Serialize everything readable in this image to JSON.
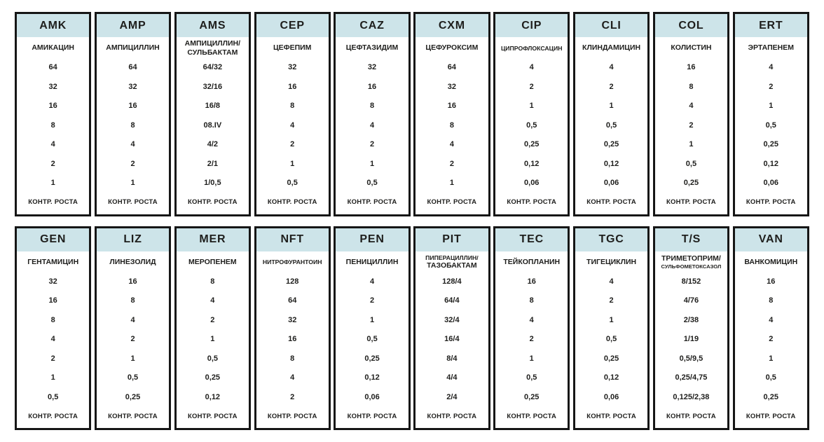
{
  "figure": {
    "control_label": "КОНТР. РОСТА",
    "colors": {
      "background": "#ffffff",
      "header_bg": "#cde4e9",
      "border": "#161616",
      "text": "#1e1e1c"
    },
    "rows": [
      [
        {
          "code": "AMK",
          "name": [
            "АМИКАЦИН"
          ],
          "dilutions": [
            "64",
            "32",
            "16",
            "8",
            "4",
            "2",
            "1"
          ]
        },
        {
          "code": "AMP",
          "name": [
            "АМПИЦИЛЛИН"
          ],
          "dilutions": [
            "64",
            "32",
            "16",
            "8",
            "4",
            "2",
            "1"
          ]
        },
        {
          "code": "AMS",
          "name": [
            "АМПИЦИЛЛИН/",
            "СУЛЬБАКТАМ"
          ],
          "dilutions": [
            "64/32",
            "32/16",
            "16/8",
            "08.IV",
            "4/2",
            "2/1",
            "1/0,5"
          ]
        },
        {
          "code": "CEP",
          "name": [
            "ЦЕФЕПИМ"
          ],
          "dilutions": [
            "32",
            "16",
            "8",
            "4",
            "2",
            "1",
            "0,5"
          ]
        },
        {
          "code": "CAZ",
          "name": [
            "ЦЕФТАЗИДИМ"
          ],
          "dilutions": [
            "32",
            "16",
            "8",
            "4",
            "2",
            "1",
            "0,5"
          ]
        },
        {
          "code": "CXM",
          "name": [
            "ЦЕФУРОКСИМ"
          ],
          "dilutions": [
            "64",
            "32",
            "16",
            "8",
            "4",
            "2",
            "1"
          ]
        },
        {
          "code": "CIP",
          "name": [
            "ЦИПРОФЛОКСАЦИН"
          ],
          "dilutions": [
            "4",
            "2",
            "1",
            "0,5",
            "0,25",
            "0,12",
            "0,06"
          ]
        },
        {
          "code": "CLI",
          "name": [
            "КЛИНДАМИЦИН"
          ],
          "dilutions": [
            "4",
            "2",
            "1",
            "0,5",
            "0,25",
            "0,12",
            "0,06"
          ]
        },
        {
          "code": "COL",
          "name": [
            "КОЛИСТИН"
          ],
          "dilutions": [
            "16",
            "8",
            "4",
            "2",
            "1",
            "0,5",
            "0,25"
          ]
        },
        {
          "code": "ERT",
          "name": [
            "ЭРТАПЕНЕМ"
          ],
          "dilutions": [
            "4",
            "2",
            "1",
            "0,5",
            "0,25",
            "0,12",
            "0,06"
          ]
        }
      ],
      [
        {
          "code": "GEN",
          "name": [
            "ГЕНТАМИЦИН"
          ],
          "dilutions": [
            "32",
            "16",
            "8",
            "4",
            "2",
            "1",
            "0,5"
          ]
        },
        {
          "code": "LIZ",
          "name": [
            "ЛИНЕЗОЛИД"
          ],
          "dilutions": [
            "16",
            "8",
            "4",
            "2",
            "1",
            "0,5",
            "0,25"
          ]
        },
        {
          "code": "MER",
          "name": [
            "МЕРОПЕНЕМ"
          ],
          "dilutions": [
            "8",
            "4",
            "2",
            "1",
            "0,5",
            "0,25",
            "0,12"
          ]
        },
        {
          "code": "NFT",
          "name": [
            "НИТРОФУРАНТОИН"
          ],
          "dilutions": [
            "128",
            "64",
            "32",
            "16",
            "8",
            "4",
            "2"
          ]
        },
        {
          "code": "PEN",
          "name": [
            "ПЕНИЦИЛЛИН"
          ],
          "dilutions": [
            "4",
            "2",
            "1",
            "0,5",
            "0,25",
            "0,12",
            "0,06"
          ]
        },
        {
          "code": "PIT",
          "name": [
            "ПИПЕРАЦИЛЛИН/",
            "ТАЗОБАКТАМ"
          ],
          "dilutions": [
            "128/4",
            "64/4",
            "32/4",
            "16/4",
            "8/4",
            "4/4",
            "2/4"
          ]
        },
        {
          "code": "TEC",
          "name": [
            "ТЕЙКОПЛАНИН"
          ],
          "dilutions": [
            "16",
            "8",
            "4",
            "2",
            "1",
            "0,5",
            "0,25"
          ]
        },
        {
          "code": "TGC",
          "name": [
            "ТИГЕЦИКЛИН"
          ],
          "dilutions": [
            "4",
            "2",
            "1",
            "0,5",
            "0,25",
            "0,12",
            "0,06"
          ]
        },
        {
          "code": "T/S",
          "name": [
            "ТРИМЕТОПРИМ/",
            "СУЛЬФОМЕТОКСАЗОЛ"
          ],
          "dilutions": [
            "8/152",
            "4/76",
            "2/38",
            "1/19",
            "0,5/9,5",
            "0,25/4,75",
            "0,125/2,38"
          ]
        },
        {
          "code": "VAN",
          "name": [
            "ВАНКОМИЦИН"
          ],
          "dilutions": [
            "16",
            "8",
            "4",
            "2",
            "1",
            "0,5",
            "0,25"
          ]
        }
      ]
    ]
  }
}
